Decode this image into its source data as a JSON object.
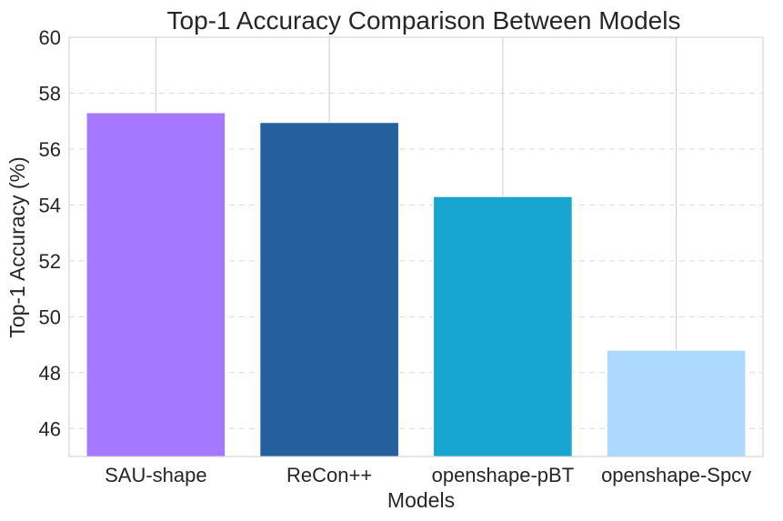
{
  "chart_data": {
    "type": "bar",
    "title": "Top-1 Accuracy Comparison Between Models",
    "xlabel": "Models",
    "ylabel": "Top-1 Accuracy (%)",
    "categories": [
      "SAU-shape",
      "ReCon++",
      "openshape-pBT",
      "openshape-Spcv"
    ],
    "values": [
      57.3,
      56.95,
      54.3,
      48.8
    ],
    "colors": [
      "#a678ff",
      "#255f9c",
      "#18a6d0",
      "#add8ff"
    ],
    "ylim": [
      45,
      60
    ],
    "yticks": [
      46,
      48,
      50,
      52,
      54,
      56,
      58,
      60
    ],
    "grid": true
  }
}
